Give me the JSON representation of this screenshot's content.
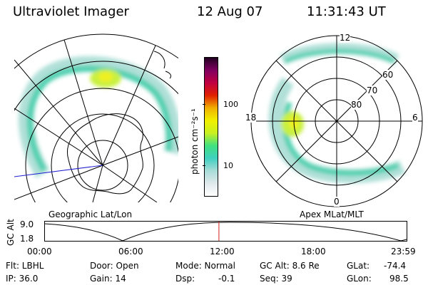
{
  "header": {
    "instrument": "Ultraviolet Imager",
    "date": "12 Aug 07",
    "time": "11:31:43 UT"
  },
  "left_panel": {
    "caption": "Geographic Lat/Lon"
  },
  "right_panel": {
    "caption": "Apex MLat/MLT",
    "lat_labels": [
      "60",
      "70",
      "80"
    ],
    "mlt_labels": [
      "12",
      "18",
      "6",
      "0"
    ]
  },
  "colorbar": {
    "label": "photon cm⁻²s⁻¹",
    "ticks": [
      "100",
      "10"
    ],
    "scale": "log",
    "colors": [
      "#ffffff",
      "#e0e8ec",
      "#a8dcd8",
      "#40d0c0",
      "#40e080",
      "#c8f020",
      "#f0f000",
      "#f0b000",
      "#e02000",
      "#c00040",
      "#800060",
      "#200020"
    ]
  },
  "altitude_plot": {
    "ylabel": "GC Alt",
    "ymax": "9.0",
    "ymin": "1.8",
    "xticks": [
      "00:00",
      "06:00",
      "12:00",
      "18:00",
      "23:59"
    ],
    "current_time_fraction": 0.482
  },
  "status": {
    "flt": "Flt: LBHL",
    "ip": "IP: 36.0",
    "door": "Door: Open",
    "gain": "Gain: 14",
    "mode": "Mode: Normal",
    "dsp_label": "Dsp:",
    "dsp_value": "-0.1",
    "gc_alt": "GC Alt: 8.6 Re",
    "seq": "Seq: 39",
    "glat_label": "GLat:",
    "glat_value": "-74.4",
    "glon_label": "GLon:",
    "glon_value": "98.5"
  },
  "colors": {
    "line": "#000000",
    "cursor": "#d02020",
    "track": "#2020d0",
    "aurora_low": "#b0e0d8",
    "aurora_mid": "#50d0b0",
    "aurora_high": "#c8f040",
    "aurora_peak": "#f0f020"
  }
}
